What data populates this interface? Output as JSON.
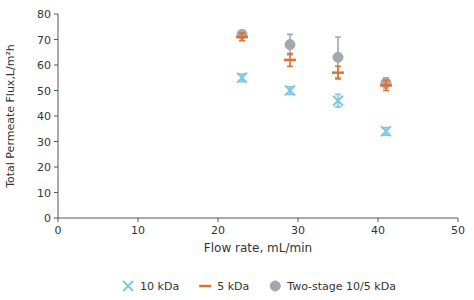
{
  "chart_data": {
    "type": "scatter",
    "x_label": "Flow rate, mL/min",
    "y_label": "Total Permeate Flux,L/m²h",
    "x": [
      23,
      29,
      35,
      41
    ],
    "series": [
      {
        "name": "10 kDa",
        "color": "#7ec8e3",
        "marker": "x",
        "values": [
          55,
          50,
          46,
          34
        ],
        "yerr": [
          1.5,
          1.5,
          2.5,
          1.5
        ]
      },
      {
        "name": "5 kDa",
        "color": "#e07030",
        "marker": "dash",
        "values": [
          71,
          62,
          57,
          52
        ],
        "yerr": [
          1.5,
          2.5,
          2.5,
          2.0
        ]
      },
      {
        "name": "Two-stage 10/5 kDa",
        "color": "#a0a8b0",
        "marker": "circle",
        "values": [
          72,
          68,
          63,
          53
        ],
        "yerr": [
          1.5,
          4.0,
          8.0,
          2.0
        ]
      }
    ],
    "xlim": [
      0,
      50
    ],
    "ylim": [
      0,
      80
    ],
    "xticks": [
      0,
      10,
      20,
      30,
      40,
      50
    ],
    "yticks": [
      0,
      10,
      20,
      30,
      40,
      50,
      60,
      70,
      80
    ],
    "grid": false,
    "legend": "bottom"
  }
}
